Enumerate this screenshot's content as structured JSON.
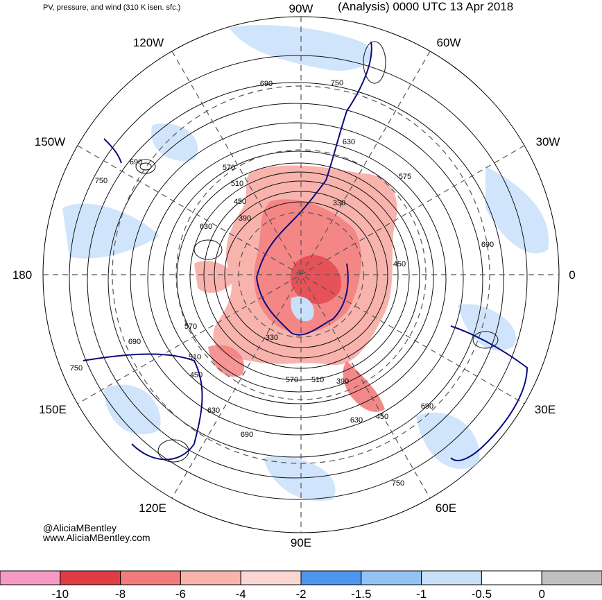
{
  "header": {
    "subtitle": "PV, pressure, and wind (310 K isen. sfc.)",
    "title": "(Analysis) 0000 UTC 13 Apr 2018"
  },
  "longitude_labels": [
    "90W",
    "60W",
    "30W",
    "0",
    "30E",
    "60E",
    "90E",
    "120E",
    "150E",
    "180",
    "150W",
    "120W"
  ],
  "contour_labels": [
    "690",
    "750",
    "630",
    "750",
    "690",
    "570",
    "510",
    "450",
    "390",
    "630",
    "330",
    "575",
    "450",
    "690",
    "570",
    "690",
    "510",
    "450",
    "330",
    "570",
    "510",
    "390",
    "630",
    "450",
    "690",
    "630",
    "690",
    "750",
    "750"
  ],
  "credits": {
    "handle": "@AliciaMBentley",
    "site": "www.AliciaMBentley.com"
  },
  "colorbar": {
    "colors": [
      "#f59ac2",
      "#e03c44",
      "#f27b7b",
      "#f8b3ad",
      "#fad7d3",
      "#4d96f0",
      "#93c3f5",
      "#c8e0fa",
      "#ffffff",
      "#c0c0c0"
    ],
    "tick_labels": [
      "-10",
      "-8",
      "-6",
      "-4",
      "-2",
      "-1.5",
      "-1",
      "-0.5",
      "0"
    ]
  },
  "colors": {
    "coast": "#0a0a80",
    "contour": "#111111",
    "pv_high": "#f08080",
    "pv_low": "#a8cdf5"
  }
}
